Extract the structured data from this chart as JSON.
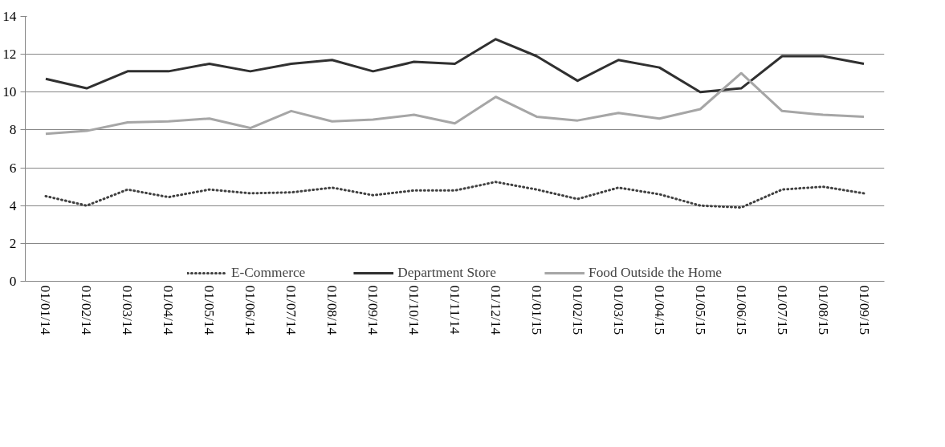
{
  "chart_data": {
    "type": "line",
    "categories": [
      "01/01/14",
      "01/02/14",
      "01/03/14",
      "01/04/14",
      "01/05/14",
      "01/06/14",
      "01/07/14",
      "01/08/14",
      "01/09/14",
      "01/10/14",
      "01/11/14",
      "01/12/14",
      "01/01/15",
      "01/02/15",
      "01/03/15",
      "01/04/15",
      "01/05/15",
      "01/06/15",
      "01/07/15",
      "01/08/15",
      "01/09/15"
    ],
    "series": [
      {
        "name": "E-Commerce",
        "color": "#404040",
        "line_style": "dotted",
        "values": [
          4.5,
          4.0,
          4.85,
          4.45,
          4.85,
          4.65,
          4.7,
          4.95,
          4.55,
          4.8,
          4.8,
          5.25,
          4.85,
          4.35,
          4.95,
          4.6,
          4.0,
          3.9,
          4.85,
          5.0,
          4.65
        ]
      },
      {
        "name": "Department Store",
        "color": "#303030",
        "line_style": "solid",
        "values": [
          10.7,
          10.2,
          11.1,
          11.1,
          11.5,
          11.1,
          11.5,
          11.7,
          11.1,
          11.6,
          11.5,
          12.8,
          11.9,
          10.6,
          11.7,
          11.3,
          10.0,
          10.2,
          11.9,
          11.9,
          11.5
        ]
      },
      {
        "name": "Food Outside the Home",
        "color": "#a6a6a6",
        "line_style": "solid",
        "values": [
          7.8,
          7.95,
          8.4,
          8.45,
          8.6,
          8.1,
          9.0,
          8.45,
          8.55,
          8.8,
          8.35,
          9.75,
          8.7,
          8.5,
          8.9,
          8.6,
          9.1,
          11.0,
          9.0,
          8.8,
          8.7
        ]
      }
    ],
    "ylim": [
      0,
      14
    ],
    "yticks": [
      0,
      2,
      4,
      6,
      8,
      10,
      12,
      14
    ],
    "grid": "y",
    "legend": "bottom",
    "marker": "none"
  }
}
